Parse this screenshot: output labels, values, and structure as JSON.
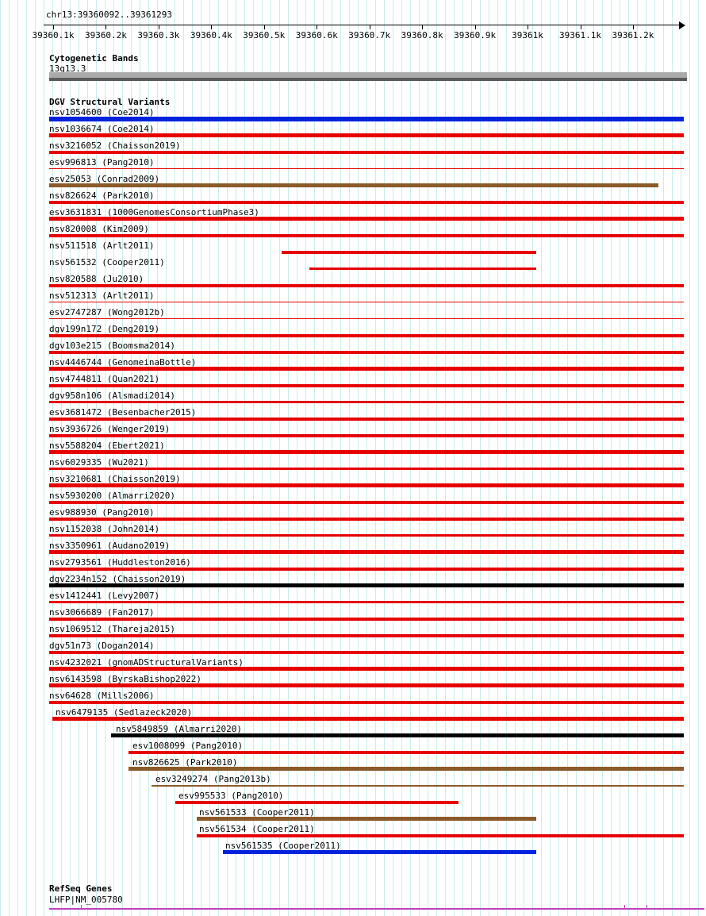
{
  "header": {
    "region": "chr13:39360092..39361293",
    "ruler_ticks": [
      "39360.1k",
      "39360.2k",
      "39360.3k",
      "39360.4k",
      "39360.5k",
      "39360.6k",
      "39360.7k",
      "39360.8k",
      "39360.9k",
      "39361k",
      "39361.1k",
      "39361.2k"
    ]
  },
  "cytogenetic": {
    "title": "Cytogenetic Bands",
    "band_label": "13q13.3"
  },
  "dgv": {
    "title": "DGV Structural Variants",
    "colors": {
      "red": "#e60000",
      "blue": "#0022dd",
      "brown": "#8b5a2b",
      "black": "#000000"
    },
    "tracks": [
      {
        "label": "nsv1054600 (Coe2014)",
        "color": "blue",
        "indent": 0,
        "start": 0,
        "end": 1,
        "weight": 6
      },
      {
        "label": "nsv1036674 (Coe2014)",
        "color": "red",
        "indent": 0,
        "start": 0,
        "end": 1,
        "weight": 5
      },
      {
        "label": "nsv3216052 (Chaisson2019)",
        "color": "red",
        "indent": 0,
        "start": 0,
        "end": 1,
        "weight": 4
      },
      {
        "label": "esv996813 (Pang2010)",
        "color": "red",
        "indent": 0,
        "start": 0,
        "end": 1,
        "weight": 1
      },
      {
        "label": "esv25053 (Conrad2009)",
        "color": "brown",
        "indent": 0,
        "start": 0,
        "end": 0.96,
        "weight": 5
      },
      {
        "label": "nsv826624 (Park2010)",
        "color": "red",
        "indent": 0,
        "start": 0,
        "end": 1,
        "weight": 4
      },
      {
        "label": "esv3631831 (1000GenomesConsortiumPhase3)",
        "color": "red",
        "indent": 0,
        "start": 0,
        "end": 1,
        "weight": 5
      },
      {
        "label": "nsv820008 (Kim2009)",
        "color": "red",
        "indent": 0,
        "start": 0,
        "end": 1,
        "weight": 4
      },
      {
        "label": "nsv511518 (Arlt2011)",
        "color": "red",
        "indent": 0,
        "start": 0.366,
        "end": 0.768,
        "weight": 4
      },
      {
        "label": "nsv561532 (Cooper2011)",
        "color": "red",
        "indent": 0,
        "start": 0.41,
        "end": 0.768,
        "weight": 3
      },
      {
        "label": "nsv820588 (Ju2010)",
        "color": "red",
        "indent": 0,
        "start": 0,
        "end": 1,
        "weight": 4
      },
      {
        "label": "nsv512313 (Arlt2011)",
        "color": "red",
        "indent": 0,
        "start": 0,
        "end": 1,
        "weight": 1
      },
      {
        "label": "esv2747287 (Wong2012b)",
        "color": "red",
        "indent": 0,
        "start": 0,
        "end": 1,
        "weight": 1
      },
      {
        "label": "dgv199n172 (Deng2019)",
        "color": "red",
        "indent": 0,
        "start": 0,
        "end": 1,
        "weight": 4
      },
      {
        "label": "dgv103e215 (Boomsma2014)",
        "color": "red",
        "indent": 0,
        "start": 0,
        "end": 1,
        "weight": 4
      },
      {
        "label": "nsv4446744 (GenomeinaBottle)",
        "color": "red",
        "indent": 0,
        "start": 0,
        "end": 1,
        "weight": 5
      },
      {
        "label": "nsv4744811 (Quan2021)",
        "color": "red",
        "indent": 0,
        "start": 0,
        "end": 1,
        "weight": 4
      },
      {
        "label": "dgv958n106 (Alsmadi2014)",
        "color": "red",
        "indent": 0,
        "start": 0,
        "end": 1,
        "weight": 3
      },
      {
        "label": "esv3681472 (Besenbacher2015)",
        "color": "red",
        "indent": 0,
        "start": 0,
        "end": 1,
        "weight": 4
      },
      {
        "label": "nsv3936726 (Wenger2019)",
        "color": "red",
        "indent": 0,
        "start": 0,
        "end": 1,
        "weight": 4
      },
      {
        "label": "nsv5588204 (Ebert2021)",
        "color": "red",
        "indent": 0,
        "start": 0,
        "end": 1,
        "weight": 5
      },
      {
        "label": "nsv6029335 (Wu2021)",
        "color": "red",
        "indent": 0,
        "start": 0,
        "end": 1,
        "weight": 3
      },
      {
        "label": "nsv3210681 (Chaisson2019)",
        "color": "red",
        "indent": 0,
        "start": 0,
        "end": 1,
        "weight": 5
      },
      {
        "label": "nsv5930200 (Almarri2020)",
        "color": "red",
        "indent": 0,
        "start": 0,
        "end": 1,
        "weight": 4
      },
      {
        "label": "esv988930 (Pang2010)",
        "color": "red",
        "indent": 0,
        "start": 0,
        "end": 1,
        "weight": 4
      },
      {
        "label": "nsv1152038 (John2014)",
        "color": "red",
        "indent": 0,
        "start": 0,
        "end": 1,
        "weight": 3
      },
      {
        "label": "nsv3350961 (Audano2019)",
        "color": "red",
        "indent": 0,
        "start": 0,
        "end": 1,
        "weight": 5
      },
      {
        "label": "nsv2793561 (Huddleston2016)",
        "color": "red",
        "indent": 0,
        "start": 0,
        "end": 1,
        "weight": 4
      },
      {
        "label": "dgv2234n152 (Chaisson2019)",
        "color": "black",
        "indent": 0,
        "start": 0,
        "end": 1,
        "weight": 5
      },
      {
        "label": "esv1412441 (Levy2007)",
        "color": "red",
        "indent": 0,
        "start": 0,
        "end": 1,
        "weight": 3
      },
      {
        "label": "nsv3066689 (Fan2017)",
        "color": "red",
        "indent": 0,
        "start": 0,
        "end": 1,
        "weight": 4
      },
      {
        "label": "nsv1069512 (Thareja2015)",
        "color": "red",
        "indent": 0,
        "start": 0,
        "end": 1,
        "weight": 4
      },
      {
        "label": "dgv51n73 (Dogan2014)",
        "color": "red",
        "indent": 0,
        "start": 0,
        "end": 1,
        "weight": 4
      },
      {
        "label": "nsv4232021 (gnomADStructuralVariants)",
        "color": "red",
        "indent": 0,
        "start": 0,
        "end": 1,
        "weight": 5
      },
      {
        "label": "nsv6143598 (ByrskaBishop2022)",
        "color": "red",
        "indent": 0,
        "start": 0,
        "end": 1,
        "weight": 5
      },
      {
        "label": "nsv64628 (Mills2006)",
        "color": "red",
        "indent": 0,
        "start": 0,
        "end": 1,
        "weight": 4
      },
      {
        "label": "nsv6479135 (Sedlazeck2020)",
        "color": "red",
        "indent": 8,
        "start": 0.005,
        "end": 1,
        "weight": 5
      },
      {
        "label": "nsv5849859 (Almarri2020)",
        "color": "black",
        "indent": 84,
        "start": 0.098,
        "end": 1,
        "weight": 5
      },
      {
        "label": "esv1008099 (Pang2010)",
        "color": "red",
        "indent": 105,
        "start": 0.125,
        "end": 1,
        "weight": 4
      },
      {
        "label": "nsv826625 (Park2010)",
        "color": "brown",
        "indent": 105,
        "start": 0.125,
        "end": 1,
        "weight": 5
      },
      {
        "label": "esv3249274 (Pang2013b)",
        "color": "brown",
        "indent": 134,
        "start": 0.161,
        "end": 1,
        "weight": 2
      },
      {
        "label": "esv995533 (Pang2010)",
        "color": "red",
        "indent": 163,
        "start": 0.199,
        "end": 0.645,
        "weight": 4
      },
      {
        "label": "nsv561533 (Cooper2011)",
        "color": "brown",
        "indent": 189,
        "start": 0.2325,
        "end": 0.768,
        "weight": 5
      },
      {
        "label": "nsv561534 (Cooper2011)",
        "color": "red",
        "indent": 189,
        "start": 0.2325,
        "end": 1,
        "weight": 4
      },
      {
        "label": "nsv561535 (Cooper2011)",
        "color": "blue",
        "indent": 222,
        "start": 0.274,
        "end": 0.768,
        "weight": 5
      }
    ]
  },
  "refseq": {
    "title": "RefSeq Genes",
    "gene_label": "LHFP|NM_005780",
    "color": "#c040c0",
    "exon_ticks": [
      0.048,
      0.878,
      0.912
    ]
  }
}
